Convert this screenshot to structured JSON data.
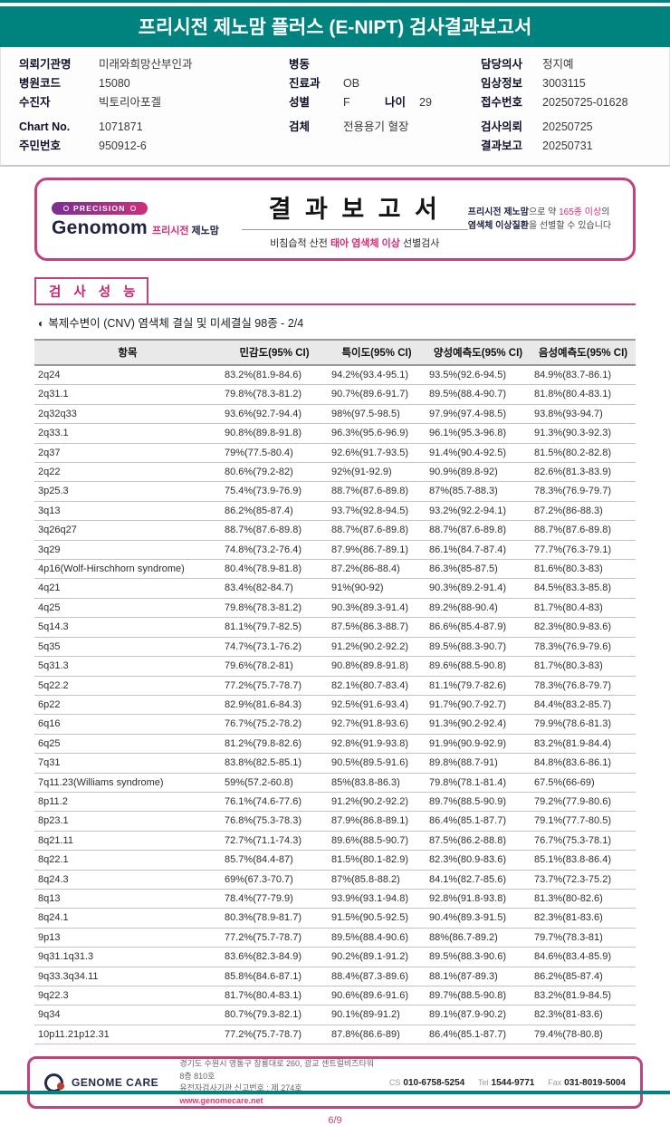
{
  "colors": {
    "teal": "#00827E",
    "accent": "#C2417E",
    "link": "#E8336E"
  },
  "banner": {
    "title": "프리시전 제노맘 플러스 (E-NIPT) 검사결과보고서"
  },
  "patient_info": {
    "col1": [
      {
        "label": "의뢰기관명",
        "value": "미래와희망산부인과"
      },
      {
        "label": "병원코드",
        "value": "15080"
      },
      {
        "label": "수진자",
        "value": "빅토리아포겔"
      },
      {
        "label": "Chart No.",
        "value": "1071871"
      },
      {
        "label": "주민번호",
        "value": "950912-6"
      }
    ],
    "col2": [
      {
        "label": "병동",
        "value": ""
      },
      {
        "label": "진료과",
        "value": "OB"
      },
      {
        "label": "성별",
        "value": "F",
        "label2": "나이",
        "value2": "29"
      },
      {
        "label": "검체",
        "value": "전용용기 혈장"
      }
    ],
    "col3": [
      {
        "label": "담당의사",
        "value": "정지예"
      },
      {
        "label": "임상정보",
        "value": "3003115"
      },
      {
        "label": "접수번호",
        "value": "20250725-01628"
      },
      {
        "label": "검사의뢰",
        "value": "20250725"
      },
      {
        "label": "결과보고",
        "value": "20250731"
      }
    ]
  },
  "report_box": {
    "badge": "PRECISION",
    "brand": "Genomom",
    "brand_kr_accent": "프리시전",
    "brand_kr": "제노맘",
    "title": "결 과 보 고 서",
    "subtitle_pre": "비침습적 산전 ",
    "subtitle_accent": "태아 염색체 이상",
    "subtitle_post": " 선별검사",
    "note_line1_bold": "프리시전 제노맘",
    "note_line1_mid": "으로 약 ",
    "note_line1_accent": "165종 이상",
    "note_line1_post": "의",
    "note_line2_bold": "염색체 이상질환",
    "note_line2_post": "을 선별할 수 있습니다"
  },
  "section": {
    "title": "검 사 성 능",
    "subtitle_icon": "◐",
    "subtitle": "복제수변이 (CNV) 염색체 결실 및 미세결실 98종 - 2/4"
  },
  "table": {
    "headers": [
      "항목",
      "민감도(95% CI)",
      "특이도(95% CI)",
      "양성예측도(95% CI)",
      "음성예측도(95% CI)"
    ],
    "rows": [
      [
        "2q24",
        "83.2%(81.9-84.6)",
        "94.2%(93.4-95.1)",
        "93.5%(92.6-94.5)",
        "84.9%(83.7-86.1)"
      ],
      [
        "2q31.1",
        "79.8%(78.3-81.2)",
        "90.7%(89.6-91.7)",
        "89.5%(88.4-90.7)",
        "81.8%(80.4-83.1)"
      ],
      [
        "2q32q33",
        "93.6%(92.7-94.4)",
        "98%(97.5-98.5)",
        "97.9%(97.4-98.5)",
        "93.8%(93-94.7)"
      ],
      [
        "2q33.1",
        "90.8%(89.8-91.8)",
        "96.3%(95.6-96.9)",
        "96.1%(95.3-96.8)",
        "91.3%(90.3-92.3)"
      ],
      [
        "2q37",
        "79%(77.5-80.4)",
        "92.6%(91.7-93.5)",
        "91.4%(90.4-92.5)",
        "81.5%(80.2-82.8)"
      ],
      [
        "2q22",
        "80.6%(79.2-82)",
        "92%(91-92.9)",
        "90.9%(89.8-92)",
        "82.6%(81.3-83.9)"
      ],
      [
        "3p25.3",
        "75.4%(73.9-76.9)",
        "88.7%(87.6-89.8)",
        "87%(85.7-88.3)",
        "78.3%(76.9-79.7)"
      ],
      [
        "3q13",
        "86.2%(85-87.4)",
        "93.7%(92.8-94.5)",
        "93.2%(92.2-94.1)",
        "87.2%(86-88.3)"
      ],
      [
        "3q26q27",
        "88.7%(87.6-89.8)",
        "88.7%(87.6-89.8)",
        "88.7%(87.6-89.8)",
        "88.7%(87.6-89.8)"
      ],
      [
        "3q29",
        "74.8%(73.2-76.4)",
        "87.9%(86.7-89.1)",
        "86.1%(84.7-87.4)",
        "77.7%(76.3-79.1)"
      ],
      [
        "4p16(Wolf-Hirschhorn syndrome)",
        "80.4%(78.9-81.8)",
        "87.2%(86-88.4)",
        "86.3%(85-87.5)",
        "81.6%(80.3-83)"
      ],
      [
        "4q21",
        "83.4%(82-84.7)",
        "91%(90-92)",
        "90.3%(89.2-91.4)",
        "84.5%(83.3-85.8)"
      ],
      [
        "4q25",
        "79.8%(78.3-81.2)",
        "90.3%(89.3-91.4)",
        "89.2%(88-90.4)",
        "81.7%(80.4-83)"
      ],
      [
        "5q14.3",
        "81.1%(79.7-82.5)",
        "87.5%(86.3-88.7)",
        "86.6%(85.4-87.9)",
        "82.3%(80.9-83.6)"
      ],
      [
        "5q35",
        "74.7%(73.1-76.2)",
        "91.2%(90.2-92.2)",
        "89.5%(88.3-90.7)",
        "78.3%(76.9-79.6)"
      ],
      [
        "5q31.3",
        "79.6%(78.2-81)",
        "90.8%(89.8-91.8)",
        "89.6%(88.5-90.8)",
        "81.7%(80.3-83)"
      ],
      [
        "5q22.2",
        "77.2%(75.7-78.7)",
        "82.1%(80.7-83.4)",
        "81.1%(79.7-82.6)",
        "78.3%(76.8-79.7)"
      ],
      [
        "6p22",
        "82.9%(81.6-84.3)",
        "92.5%(91.6-93.4)",
        "91.7%(90.7-92.7)",
        "84.4%(83.2-85.7)"
      ],
      [
        "6q16",
        "76.7%(75.2-78.2)",
        "92.7%(91.8-93.6)",
        "91.3%(90.2-92.4)",
        "79.9%(78.6-81.3)"
      ],
      [
        "6q25",
        "81.2%(79.8-82.6)",
        "92.8%(91.9-93.8)",
        "91.9%(90.9-92.9)",
        "83.2%(81.9-84.4)"
      ],
      [
        "7q31",
        "83.8%(82.5-85.1)",
        "90.5%(89.5-91.6)",
        "89.8%(88.7-91)",
        "84.8%(83.6-86.1)"
      ],
      [
        "7q11.23(Williams syndrome)",
        "59%(57.2-60.8)",
        "85%(83.8-86.3)",
        "79.8%(78.1-81.4)",
        "67.5%(66-69)"
      ],
      [
        "8p11.2",
        "76.1%(74.6-77.6)",
        "91.2%(90.2-92.2)",
        "89.7%(88.5-90.9)",
        "79.2%(77.9-80.6)"
      ],
      [
        "8p23.1",
        "76.8%(75.3-78.3)",
        "87.9%(86.8-89.1)",
        "86.4%(85.1-87.7)",
        "79.1%(77.7-80.5)"
      ],
      [
        "8q21.11",
        "72.7%(71.1-74.3)",
        "89.6%(88.5-90.7)",
        "87.5%(86.2-88.8)",
        "76.7%(75.3-78.1)"
      ],
      [
        "8q22.1",
        "85.7%(84.4-87)",
        "81.5%(80.1-82.9)",
        "82.3%(80.9-83.6)",
        "85.1%(83.8-86.4)"
      ],
      [
        "8q24.3",
        "69%(67.3-70.7)",
        "87%(85.8-88.2)",
        "84.1%(82.7-85.6)",
        "73.7%(72.3-75.2)"
      ],
      [
        "8q13",
        "78.4%(77-79.9)",
        "93.9%(93.1-94.8)",
        "92.8%(91.8-93.8)",
        "81.3%(80-82.6)"
      ],
      [
        "8q24.1",
        "80.3%(78.9-81.7)",
        "91.5%(90.5-92.5)",
        "90.4%(89.3-91.5)",
        "82.3%(81-83.6)"
      ],
      [
        "9p13",
        "77.2%(75.7-78.7)",
        "89.5%(88.4-90.6)",
        "88%(86.7-89.2)",
        "79.7%(78.3-81)"
      ],
      [
        "9q31.1q31.3",
        "83.6%(82.3-84.9)",
        "90.2%(89.1-91.2)",
        "89.5%(88.3-90.6)",
        "84.6%(83.4-85.9)"
      ],
      [
        "9q33.3q34.11",
        "85.8%(84.6-87.1)",
        "88.4%(87.3-89.6)",
        "88.1%(87-89.3)",
        "86.2%(85-87.4)"
      ],
      [
        "9q22.3",
        "81.7%(80.4-83.1)",
        "90.6%(89.6-91.6)",
        "89.7%(88.5-90.8)",
        "83.2%(81.9-84.5)"
      ],
      [
        "9q34",
        "80.7%(79.3-82.1)",
        "90.1%(89-91.2)",
        "89.1%(87.9-90.2)",
        "82.3%(81-83.6)"
      ],
      [
        "10p11.21p12.31",
        "77.2%(75.7-78.7)",
        "87.8%(86.6-89)",
        "86.4%(85.1-87.7)",
        "79.4%(78-80.8)"
      ]
    ]
  },
  "footer": {
    "company": "GENOME CARE",
    "address_line1": "경기도 수원시 영통구 창룡대로 260, 광교 센트럴비즈타워 8층 810호",
    "address_line2": "유전자검사기관 신고번호 : 제 274호",
    "website": "www.genomecare.net",
    "cs_label": "CS",
    "cs_value": "010-6758-5254",
    "tel_label": "Tel",
    "tel_value": "1544-9771",
    "fax_label": "Fax",
    "fax_value": "031-8019-5004"
  },
  "page": {
    "number": "6/9"
  }
}
